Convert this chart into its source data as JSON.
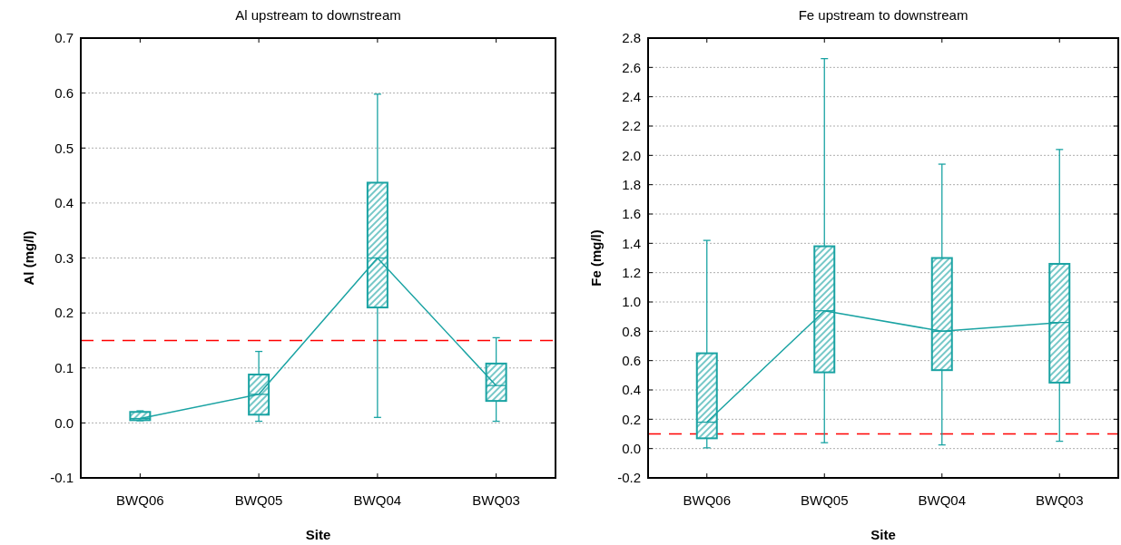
{
  "chart_data": [
    {
      "type": "box",
      "title": "Al upstream to downstream",
      "xlabel": "Site",
      "ylabel": "Al (mg/l)",
      "categories": [
        "BWQ06",
        "BWQ05",
        "BWQ04",
        "BWQ03"
      ],
      "series": [
        {
          "type": "box",
          "color": "#1aa3a3",
          "boxes": [
            {
              "low": 0.004,
              "q1": 0.005,
              "median": 0.008,
              "q3": 0.02,
              "high": 0.022
            },
            {
              "low": 0.003,
              "q1": 0.015,
              "median": 0.052,
              "q3": 0.088,
              "high": 0.13
            },
            {
              "low": 0.01,
              "q1": 0.21,
              "median": 0.3,
              "q3": 0.437,
              "high": 0.598
            },
            {
              "low": 0.003,
              "q1": 0.04,
              "median": 0.068,
              "q3": 0.108,
              "high": 0.155
            }
          ]
        },
        {
          "type": "line",
          "color": "#1aa3a3",
          "values": [
            0.008,
            0.052,
            0.3,
            0.068
          ]
        }
      ],
      "ylim": [
        -0.1,
        0.7
      ],
      "yticks": [
        -0.1,
        {
          "value": 0,
          "label": "0.0"
        },
        0.1,
        0.2,
        0.3,
        0.4,
        0.5,
        0.6,
        0.7
      ],
      "grid": "y",
      "ref_lines": [
        {
          "axis": "y",
          "value": 0.15,
          "color": "#ff0000",
          "line_style": "dashed"
        }
      ]
    },
    {
      "type": "box",
      "title": "Fe upstream to downstream",
      "xlabel": "Site",
      "ylabel": "Fe (mg/l)",
      "categories": [
        "BWQ06",
        "BWQ05",
        "BWQ04",
        "BWQ03"
      ],
      "series": [
        {
          "type": "box",
          "color": "#1aa3a3",
          "boxes": [
            {
              "low": 0.005,
              "q1": 0.07,
              "median": 0.18,
              "q3": 0.65,
              "high": 1.42
            },
            {
              "low": 0.04,
              "q1": 0.52,
              "median": 0.94,
              "q3": 1.38,
              "high": 2.66
            },
            {
              "low": 0.025,
              "q1": 0.535,
              "median": 0.8,
              "q3": 1.3,
              "high": 1.94
            },
            {
              "low": 0.05,
              "q1": 0.45,
              "median": 0.86,
              "q3": 1.26,
              "high": 2.04
            }
          ]
        },
        {
          "type": "line",
          "color": "#1aa3a3",
          "values": [
            0.18,
            0.94,
            0.8,
            0.86
          ]
        }
      ],
      "ylim": [
        -0.2,
        2.8
      ],
      "yticks": [
        -0.2,
        {
          "value": 0,
          "label": "0.0"
        },
        0.2,
        0.4,
        0.6,
        0.8,
        {
          "value": 1,
          "label": "1.0"
        },
        1.2,
        1.4,
        1.6,
        1.8,
        {
          "value": 2,
          "label": "2.0"
        },
        2.2,
        2.4,
        2.6,
        2.8
      ],
      "grid": "y",
      "ref_lines": [
        {
          "axis": "y",
          "value": 0.1,
          "color": "#ff0000",
          "line_style": "dashed"
        }
      ]
    }
  ]
}
